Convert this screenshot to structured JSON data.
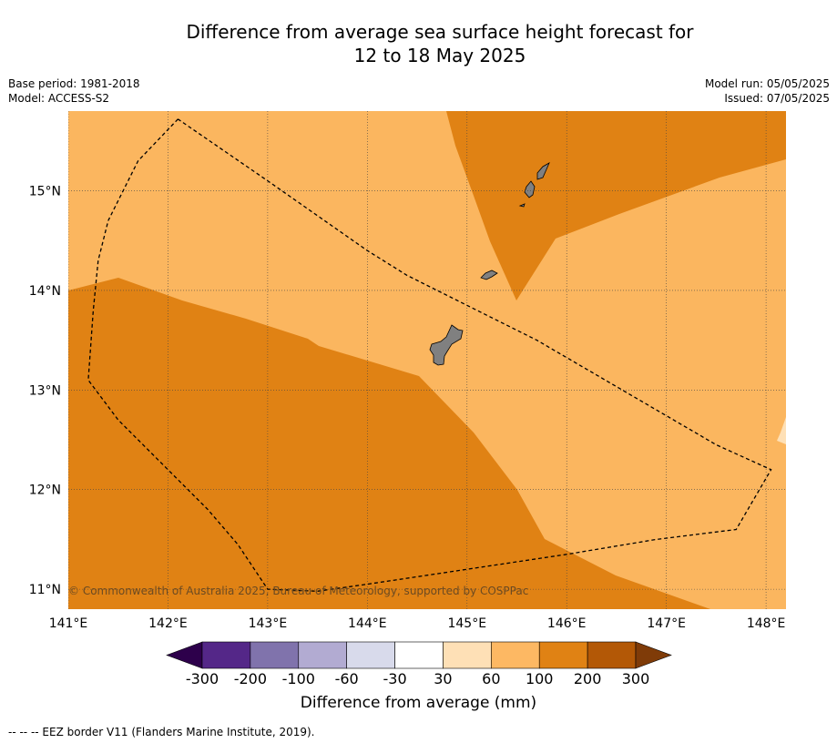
{
  "title": {
    "line1": "Difference from average sea surface height forecast for",
    "line2": "12 to 18 May 2025"
  },
  "meta": {
    "base_period": "Base period: 1981-2018",
    "model": "Model: ACCESS-S2",
    "model_run": "Model run: 05/05/2025",
    "issued": "Issued: 07/05/2025"
  },
  "map": {
    "lon_range": [
      141.0,
      148.2
    ],
    "lat_range": [
      10.8,
      15.8
    ],
    "lon_ticks": [
      "141°E",
      "142°E",
      "143°E",
      "144°E",
      "145°E",
      "146°E",
      "147°E",
      "148°E"
    ],
    "lat_ticks": [
      "11°N",
      "12°N",
      "13°N",
      "14°N",
      "15°N"
    ],
    "copyright": "© Commonwealth of Australia 2025, Bureau of Meteorology, supported by COSPPac",
    "fill_colors": {
      "band_60_100": "#fbb65f",
      "band_100_200": "#e08214",
      "band_30_60": "#fee0b6",
      "land": "#808080"
    },
    "eez_border": [
      [
        142.1,
        15.72
      ],
      [
        141.7,
        15.3
      ],
      [
        141.4,
        14.7
      ],
      [
        141.3,
        14.3
      ],
      [
        141.25,
        13.8
      ],
      [
        141.2,
        13.1
      ],
      [
        141.5,
        12.7
      ],
      [
        141.9,
        12.3
      ],
      [
        142.4,
        11.8
      ],
      [
        142.7,
        11.45
      ],
      [
        143.0,
        11.0
      ],
      [
        143.5,
        10.98
      ],
      [
        144.0,
        11.05
      ],
      [
        145.0,
        11.2
      ],
      [
        146.0,
        11.35
      ],
      [
        146.9,
        11.5
      ],
      [
        147.7,
        11.6
      ],
      [
        148.05,
        12.2
      ],
      [
        147.5,
        12.45
      ],
      [
        146.9,
        12.8
      ],
      [
        146.3,
        13.15
      ],
      [
        145.7,
        13.5
      ],
      [
        145.2,
        13.75
      ],
      [
        144.8,
        13.95
      ],
      [
        144.4,
        14.15
      ],
      [
        144.0,
        14.4
      ],
      [
        143.5,
        14.75
      ],
      [
        143.0,
        15.1
      ],
      [
        142.1,
        15.72
      ]
    ]
  },
  "colorbar": {
    "colors": [
      "#2d004b",
      "#542788",
      "#8073ac",
      "#b2abd2",
      "#d8daeb",
      "#ffffff",
      "#fee0b6",
      "#fdb863",
      "#e08214",
      "#b35806",
      "#7f3b08"
    ],
    "tick_labels": [
      "-300",
      "-200",
      "-100",
      "-60",
      "-30",
      "30",
      "60",
      "100",
      "200",
      "300"
    ],
    "label": "Difference from average (mm)"
  },
  "footnote": "--  --  -- EEZ border V11 (Flanders Marine Institute, 2019)."
}
